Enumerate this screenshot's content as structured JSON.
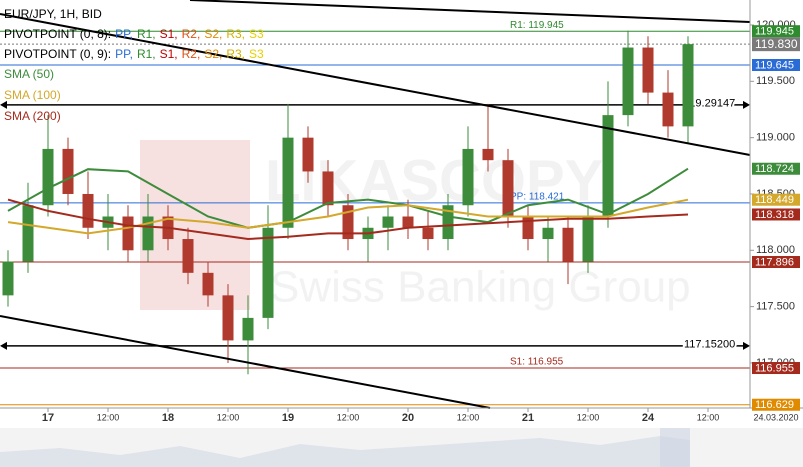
{
  "chart_data": {
    "type": "candlestick",
    "title": "EUR/JPY, 1H, BID",
    "watermark": [
      "LIKASCOPY",
      "Swiss Banking Group"
    ],
    "pivot_legend": [
      {
        "label": "PIVOTPOINT (0, 8):",
        "items": [
          {
            "text": "PP,",
            "color": "#2a6bd6"
          },
          {
            "text": "R1,",
            "color": "#2e8b2e"
          },
          {
            "text": "S1,",
            "color": "#c00000"
          },
          {
            "text": "R2,",
            "color": "#e05010"
          },
          {
            "text": "S2,",
            "color": "#e08a00"
          },
          {
            "text": "R3,",
            "color": "#d4b000"
          },
          {
            "text": "S3",
            "color": "#e8d000"
          }
        ]
      },
      {
        "label": "PIVOTPOINT (0, 9):",
        "items": [
          {
            "text": "PP,",
            "color": "#2a6bd6"
          },
          {
            "text": "R1,",
            "color": "#2e8b2e"
          },
          {
            "text": "S1,",
            "color": "#c00000"
          },
          {
            "text": "R2,",
            "color": "#e05010"
          },
          {
            "text": "S2,",
            "color": "#e08a00"
          },
          {
            "text": "R3,",
            "color": "#d4b000"
          },
          {
            "text": "S3",
            "color": "#e8d000"
          }
        ]
      }
    ],
    "x": [
      -8,
      -4,
      0,
      4,
      8,
      12,
      16,
      20,
      24,
      28,
      32,
      36,
      40,
      44,
      48,
      52,
      56,
      60,
      64,
      68,
      72,
      76,
      80,
      84,
      88,
      92,
      96,
      100,
      104,
      108,
      112,
      116,
      120,
      124,
      128
    ],
    "open": [
      117.6,
      117.9,
      118.4,
      118.9,
      118.5,
      118.2,
      118.3,
      118.0,
      118.3,
      118.1,
      117.8,
      117.6,
      117.2,
      117.4,
      118.2,
      119.0,
      118.7,
      118.4,
      118.1,
      118.2,
      118.3,
      118.2,
      118.1,
      118.4,
      118.9,
      118.8,
      118.3,
      118.1,
      118.2,
      117.9,
      118.3,
      119.2,
      119.8,
      119.4,
      119.1
    ],
    "high": [
      118.0,
      118.6,
      119.2,
      119.0,
      118.7,
      118.5,
      118.4,
      118.5,
      118.4,
      118.2,
      117.9,
      117.7,
      117.6,
      118.4,
      119.3,
      119.1,
      118.8,
      118.5,
      118.3,
      118.4,
      118.45,
      118.35,
      118.5,
      119.1,
      119.3,
      118.9,
      118.4,
      118.3,
      118.3,
      118.4,
      119.5,
      119.95,
      119.9,
      119.6,
      119.9
    ],
    "low": [
      117.5,
      117.8,
      118.3,
      118.4,
      118.1,
      118.0,
      117.9,
      117.9,
      118.0,
      117.7,
      117.5,
      117.0,
      116.9,
      117.3,
      118.1,
      118.6,
      118.3,
      118.0,
      117.9,
      118.0,
      118.1,
      118.0,
      118.0,
      118.3,
      118.7,
      118.2,
      118.0,
      117.9,
      117.7,
      117.8,
      118.2,
      119.1,
      119.3,
      119.0,
      118.95
    ],
    "close": [
      117.9,
      118.4,
      118.9,
      118.5,
      118.2,
      118.3,
      118.0,
      118.3,
      118.1,
      117.8,
      117.6,
      117.2,
      117.4,
      118.2,
      119.0,
      118.7,
      118.4,
      118.1,
      118.2,
      118.3,
      118.2,
      118.1,
      118.4,
      118.9,
      118.8,
      118.3,
      118.1,
      118.2,
      117.9,
      118.3,
      119.2,
      119.8,
      119.4,
      119.1,
      119.83
    ],
    "up_color": "#3c8c3c",
    "down_color": "#b03a2e",
    "last_price": {
      "value": 119.83,
      "label": "119.830",
      "color": "#7a7a7a"
    },
    "series": [
      {
        "name": "SMA (50)",
        "color": "#3c8c3c",
        "x": [
          -8,
          0,
          8,
          16,
          24,
          32,
          40,
          48,
          56,
          64,
          72,
          80,
          88,
          96,
          104,
          112,
          120,
          128
        ],
        "values": [
          118.35,
          118.55,
          118.72,
          118.7,
          118.5,
          118.3,
          118.2,
          118.25,
          118.42,
          118.45,
          118.4,
          118.3,
          118.25,
          118.4,
          118.45,
          118.32,
          118.5,
          118.724
        ]
      },
      {
        "name": "SMA (100)",
        "color": "#d4a82a",
        "x": [
          -8,
          0,
          8,
          16,
          24,
          32,
          40,
          48,
          56,
          64,
          72,
          80,
          88,
          96,
          104,
          112,
          120,
          128
        ],
        "values": [
          118.25,
          118.2,
          118.15,
          118.2,
          118.28,
          118.25,
          118.2,
          118.25,
          118.3,
          118.38,
          118.4,
          118.35,
          118.3,
          118.3,
          118.3,
          118.3,
          118.38,
          118.449
        ]
      },
      {
        "name": "SMA (200)",
        "color": "#a52a1e",
        "x": [
          -8,
          0,
          8,
          16,
          24,
          32,
          40,
          48,
          56,
          64,
          72,
          80,
          88,
          96,
          104,
          112,
          120,
          128
        ],
        "values": [
          118.45,
          118.35,
          118.28,
          118.22,
          118.2,
          118.15,
          118.1,
          118.12,
          118.15,
          118.15,
          118.2,
          118.22,
          118.24,
          118.26,
          118.28,
          118.28,
          118.3,
          118.318
        ]
      }
    ],
    "levels": [
      {
        "value": 119.945,
        "color": "#2e8b2e",
        "label": "R1: 119.945",
        "style": "solid",
        "badge": true
      },
      {
        "value": 119.645,
        "color": "#2a6bd6",
        "style": "solid",
        "badge": true
      },
      {
        "value": 119.29147,
        "color": "#000000",
        "style": "arrow",
        "badge": false
      },
      {
        "value": 118.421,
        "color": "#2a6bd6",
        "label": "PP: 118.421",
        "style": "solid",
        "badge": false
      },
      {
        "value": 117.896,
        "color": "#a52a1e",
        "style": "solid",
        "badge": true
      },
      {
        "value": 117.152,
        "color": "#000000",
        "label": "117.15200",
        "style": "arrow",
        "badge": false
      },
      {
        "value": 116.955,
        "color": "#a52a1e",
        "label": "S1: 116.955",
        "style": "solid",
        "badge": true
      },
      {
        "value": 116.629,
        "color": "#e08a00",
        "style": "solid",
        "badge": true
      }
    ],
    "ylim": [
      116.6,
      120.222
    ],
    "yticks": [
      {
        "value": 120,
        "label": "120.000"
      },
      {
        "value": 119.5,
        "label": "119.500"
      },
      {
        "value": 119,
        "label": "119.000"
      },
      {
        "value": 118.5,
        "label": "118.500"
      },
      {
        "value": 118,
        "label": "118.000"
      },
      {
        "value": 117.5,
        "label": "117.500"
      },
      {
        "value": 117,
        "label": "117.000"
      }
    ],
    "xlim": [
      -9.6,
      140.4
    ],
    "xticks": [
      {
        "value": 0,
        "label": "17"
      },
      {
        "value": 12,
        "label": "12:00"
      },
      {
        "value": 24,
        "label": "18"
      },
      {
        "value": 36,
        "label": "12:00"
      },
      {
        "value": 48,
        "label": "19"
      },
      {
        "value": 60,
        "label": "12:00"
      },
      {
        "value": 72,
        "label": "20"
      },
      {
        "value": 84,
        "label": "12:00"
      },
      {
        "value": 96,
        "label": "21"
      },
      {
        "value": 108,
        "label": "12:00"
      },
      {
        "value": 120,
        "label": "24"
      },
      {
        "value": 132,
        "label": "12:00"
      }
    ],
    "cursor_date": "24.03.2020"
  }
}
